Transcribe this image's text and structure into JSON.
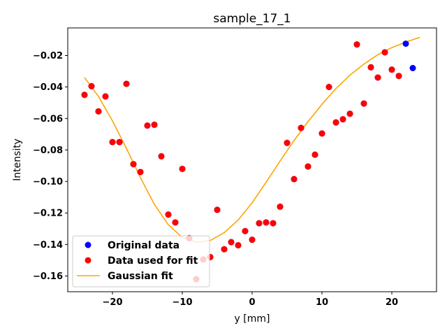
{
  "chart_data": {
    "type": "scatter",
    "title": "sample_17_1",
    "xlabel": "y [mm]",
    "ylabel": "Intensity",
    "xlim": [
      -26.4,
      26.4
    ],
    "ylim": [
      -0.17,
      -0.0025
    ],
    "x_ticks": [
      -20,
      -10,
      0,
      10,
      20
    ],
    "x_tick_labels": [
      "−20",
      "−10",
      "0",
      "10",
      "20"
    ],
    "y_ticks": [
      -0.16,
      -0.14,
      -0.12,
      -0.1,
      -0.08,
      -0.06,
      -0.04,
      -0.02
    ],
    "y_tick_labels": [
      "−0.16",
      "−0.14",
      "−0.12",
      "−0.10",
      "−0.08",
      "−0.06",
      "−0.04",
      "−0.02"
    ],
    "grid": false,
    "legend_position": "lower-left",
    "series": [
      {
        "name": "Original data",
        "kind": "scatter",
        "color": "#0000ff",
        "points": [
          [
            -24,
            -0.045
          ],
          [
            -23,
            -0.0395
          ],
          [
            -22,
            -0.0555
          ],
          [
            -21,
            -0.046
          ],
          [
            -20,
            -0.075
          ],
          [
            -19,
            -0.075
          ],
          [
            -18,
            -0.038
          ],
          [
            -17,
            -0.089
          ],
          [
            -16,
            -0.094
          ],
          [
            -15,
            -0.0645
          ],
          [
            -14,
            -0.064
          ],
          [
            -13,
            -0.084
          ],
          [
            -12,
            -0.121
          ],
          [
            -11,
            -0.126
          ],
          [
            -10,
            -0.092
          ],
          [
            -9,
            -0.136
          ],
          [
            -8,
            -0.162
          ],
          [
            -7,
            -0.1495
          ],
          [
            -6,
            -0.148
          ],
          [
            -5,
            -0.118
          ],
          [
            -4,
            -0.143
          ],
          [
            -3,
            -0.1385
          ],
          [
            -2,
            -0.1405
          ],
          [
            -1,
            -0.1315
          ],
          [
            0,
            -0.137
          ],
          [
            1,
            -0.1265
          ],
          [
            2,
            -0.126
          ],
          [
            3,
            -0.1265
          ],
          [
            4,
            -0.116
          ],
          [
            5,
            -0.0755
          ],
          [
            6,
            -0.0985
          ],
          [
            7,
            -0.066
          ],
          [
            8,
            -0.0905
          ],
          [
            9,
            -0.083
          ],
          [
            10,
            -0.0695
          ],
          [
            11,
            -0.04
          ],
          [
            12,
            -0.0625
          ],
          [
            13,
            -0.0605
          ],
          [
            14,
            -0.057
          ],
          [
            15,
            -0.013
          ],
          [
            16,
            -0.0505
          ],
          [
            17,
            -0.0275
          ],
          [
            18,
            -0.034
          ],
          [
            19,
            -0.018
          ],
          [
            20,
            -0.029
          ],
          [
            21,
            -0.033
          ],
          [
            22,
            -0.0125
          ],
          [
            23,
            -0.028
          ]
        ]
      },
      {
        "name": "Data used for fit",
        "kind": "scatter",
        "color": "#ff0000",
        "points": [
          [
            -24,
            -0.045
          ],
          [
            -23,
            -0.0395
          ],
          [
            -22,
            -0.0555
          ],
          [
            -21,
            -0.046
          ],
          [
            -20,
            -0.075
          ],
          [
            -19,
            -0.075
          ],
          [
            -18,
            -0.038
          ],
          [
            -17,
            -0.089
          ],
          [
            -16,
            -0.094
          ],
          [
            -15,
            -0.0645
          ],
          [
            -14,
            -0.064
          ],
          [
            -13,
            -0.084
          ],
          [
            -12,
            -0.121
          ],
          [
            -11,
            -0.126
          ],
          [
            -10,
            -0.092
          ],
          [
            -9,
            -0.136
          ],
          [
            -8,
            -0.162
          ],
          [
            -7,
            -0.1495
          ],
          [
            -6,
            -0.148
          ],
          [
            -5,
            -0.118
          ],
          [
            -4,
            -0.143
          ],
          [
            -3,
            -0.1385
          ],
          [
            -2,
            -0.1405
          ],
          [
            -1,
            -0.1315
          ],
          [
            0,
            -0.137
          ],
          [
            1,
            -0.1265
          ],
          [
            2,
            -0.126
          ],
          [
            3,
            -0.1265
          ],
          [
            4,
            -0.116
          ],
          [
            5,
            -0.0755
          ],
          [
            6,
            -0.0985
          ],
          [
            7,
            -0.066
          ],
          [
            8,
            -0.0905
          ],
          [
            9,
            -0.083
          ],
          [
            10,
            -0.0695
          ],
          [
            11,
            -0.04
          ],
          [
            12,
            -0.0625
          ],
          [
            13,
            -0.0605
          ],
          [
            14,
            -0.057
          ],
          [
            15,
            -0.013
          ],
          [
            16,
            -0.0505
          ],
          [
            17,
            -0.0275
          ],
          [
            18,
            -0.034
          ],
          [
            19,
            -0.018
          ],
          [
            20,
            -0.029
          ],
          [
            21,
            -0.033
          ]
        ]
      },
      {
        "name": "Gaussian fit",
        "kind": "line",
        "color": "#ffa500",
        "points": [
          [
            -24,
            -0.034
          ],
          [
            -22,
            -0.046
          ],
          [
            -20,
            -0.0615
          ],
          [
            -18,
            -0.079
          ],
          [
            -16,
            -0.0975
          ],
          [
            -14,
            -0.1145
          ],
          [
            -12,
            -0.1275
          ],
          [
            -10,
            -0.1355
          ],
          [
            -8,
            -0.1385
          ],
          [
            -6,
            -0.1375
          ],
          [
            -4,
            -0.1325
          ],
          [
            -2,
            -0.1245
          ],
          [
            0,
            -0.1135
          ],
          [
            2,
            -0.1005
          ],
          [
            4,
            -0.087
          ],
          [
            6,
            -0.074
          ],
          [
            8,
            -0.062
          ],
          [
            10,
            -0.051
          ],
          [
            12,
            -0.041
          ],
          [
            14,
            -0.0325
          ],
          [
            16,
            -0.0255
          ],
          [
            18,
            -0.0195
          ],
          [
            20,
            -0.015
          ],
          [
            22,
            -0.0115
          ],
          [
            24,
            -0.0085
          ]
        ]
      }
    ]
  }
}
